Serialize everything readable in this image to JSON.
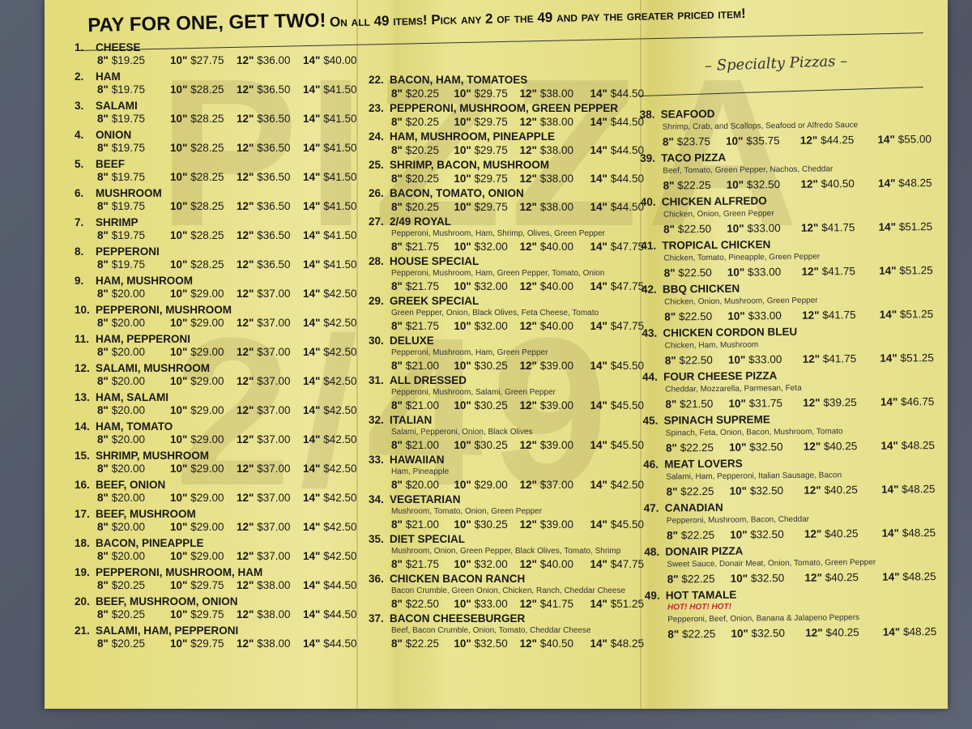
{
  "header": {
    "headline_big": "PAY FOR ONE, GET TWO!",
    "headline_small": "On all 49 items! Pick any 2 of the 49 and pay the greater priced item!",
    "specialty_title": "– Specialty Pizzas –"
  },
  "watermark": "PIZZA 2/49",
  "sizes": [
    "8\"",
    "10\"",
    "12\"",
    "14\""
  ],
  "colors": {
    "paper": "#e8e28a",
    "hot_text": "#c0282d",
    "background": "#5b6172"
  },
  "columns": {
    "left": [
      {
        "num": "1.",
        "name": "CHEESE",
        "prices": [
          "$19.25",
          "$27.75",
          "$36.00",
          "$40.00"
        ]
      },
      {
        "num": "2.",
        "name": "HAM",
        "prices": [
          "$19.75",
          "$28.25",
          "$36.50",
          "$41.50"
        ]
      },
      {
        "num": "3.",
        "name": "SALAMI",
        "prices": [
          "$19.75",
          "$28.25",
          "$36.50",
          "$41.50"
        ]
      },
      {
        "num": "4.",
        "name": "ONION",
        "prices": [
          "$19.75",
          "$28.25",
          "$36.50",
          "$41.50"
        ]
      },
      {
        "num": "5.",
        "name": "BEEF",
        "prices": [
          "$19.75",
          "$28.25",
          "$36.50",
          "$41.50"
        ]
      },
      {
        "num": "6.",
        "name": "MUSHROOM",
        "prices": [
          "$19.75",
          "$28.25",
          "$36.50",
          "$41.50"
        ]
      },
      {
        "num": "7.",
        "name": "SHRIMP",
        "prices": [
          "$19.75",
          "$28.25",
          "$36.50",
          "$41.50"
        ]
      },
      {
        "num": "8.",
        "name": "PEPPERONI",
        "prices": [
          "$19.75",
          "$28.25",
          "$36.50",
          "$41.50"
        ]
      },
      {
        "num": "9.",
        "name": "HAM, MUSHROOM",
        "prices": [
          "$20.00",
          "$29.00",
          "$37.00",
          "$42.50"
        ]
      },
      {
        "num": "10.",
        "name": "PEPPERONI, MUSHROOM",
        "prices": [
          "$20.00",
          "$29.00",
          "$37.00",
          "$42.50"
        ]
      },
      {
        "num": "11.",
        "name": "HAM, PEPPERONI",
        "prices": [
          "$20.00",
          "$29.00",
          "$37.00",
          "$42.50"
        ]
      },
      {
        "num": "12.",
        "name": "SALAMI, MUSHROOM",
        "prices": [
          "$20.00",
          "$29.00",
          "$37.00",
          "$42.50"
        ]
      },
      {
        "num": "13.",
        "name": "HAM, SALAMI",
        "prices": [
          "$20.00",
          "$29.00",
          "$37.00",
          "$42.50"
        ]
      },
      {
        "num": "14.",
        "name": "HAM, TOMATO",
        "prices": [
          "$20.00",
          "$29.00",
          "$37.00",
          "$42.50"
        ]
      },
      {
        "num": "15.",
        "name": "SHRIMP, MUSHROOM",
        "prices": [
          "$20.00",
          "$29.00",
          "$37.00",
          "$42.50"
        ]
      },
      {
        "num": "16.",
        "name": "BEEF, ONION",
        "prices": [
          "$20.00",
          "$29.00",
          "$37.00",
          "$42.50"
        ]
      },
      {
        "num": "17.",
        "name": "BEEF, MUSHROOM",
        "prices": [
          "$20.00",
          "$29.00",
          "$37.00",
          "$42.50"
        ]
      },
      {
        "num": "18.",
        "name": "BACON, PINEAPPLE",
        "prices": [
          "$20.00",
          "$29.00",
          "$37.00",
          "$42.50"
        ]
      },
      {
        "num": "19.",
        "name": "PEPPERONI, MUSHROOM, HAM",
        "prices": [
          "$20.25",
          "$29.75",
          "$38.00",
          "$44.50"
        ]
      },
      {
        "num": "20.",
        "name": "BEEF, MUSHROOM, ONION",
        "prices": [
          "$20.25",
          "$29.75",
          "$38.00",
          "$44.50"
        ]
      },
      {
        "num": "21.",
        "name": "SALAMI, HAM, PEPPERONI",
        "prices": [
          "$20.25",
          "$29.75",
          "$38.00",
          "$44.50"
        ]
      }
    ],
    "mid": [
      {
        "num": "22.",
        "name": "BACON, HAM, TOMATOES",
        "prices": [
          "$20.25",
          "$29.75",
          "$38.00",
          "$44.50"
        ]
      },
      {
        "num": "23.",
        "name": "PEPPERONI, MUSHROOM, GREEN PEPPER",
        "prices": [
          "$20.25",
          "$29.75",
          "$38.00",
          "$44.50"
        ]
      },
      {
        "num": "24.",
        "name": "HAM, MUSHROOM, PINEAPPLE",
        "prices": [
          "$20.25",
          "$29.75",
          "$38.00",
          "$44.50"
        ]
      },
      {
        "num": "25.",
        "name": "SHRIMP, BACON, MUSHROOM",
        "prices": [
          "$20.25",
          "$29.75",
          "$38.00",
          "$44.50"
        ]
      },
      {
        "num": "26.",
        "name": "BACON, TOMATO, ONION",
        "prices": [
          "$20.25",
          "$29.75",
          "$38.00",
          "$44.50"
        ]
      },
      {
        "num": "27.",
        "name": "2/49 ROYAL",
        "desc": "Pepperoni, Mushroom, Ham, Shrimp, Olives, Green Pepper",
        "prices": [
          "$21.75",
          "$32.00",
          "$40.00",
          "$47.75"
        ]
      },
      {
        "num": "28.",
        "name": "HOUSE SPECIAL",
        "desc": "Pepperoni, Mushroom, Ham, Green Pepper, Tomato, Onion",
        "prices": [
          "$21.75",
          "$32.00",
          "$40.00",
          "$47.75"
        ]
      },
      {
        "num": "29.",
        "name": "GREEK SPECIAL",
        "desc": "Green Pepper, Onion, Black Olives, Feta Cheese, Tomato",
        "prices": [
          "$21.75",
          "$32.00",
          "$40.00",
          "$47.75"
        ]
      },
      {
        "num": "30.",
        "name": "DELUXE",
        "desc": "Pepperoni, Mushroom, Ham, Green Pepper",
        "prices": [
          "$21.00",
          "$30.25",
          "$39.00",
          "$45.50"
        ]
      },
      {
        "num": "31.",
        "name": "ALL DRESSED",
        "desc": "Pepperoni, Mushroom, Salami, Green Pepper",
        "prices": [
          "$21.00",
          "$30.25",
          "$39.00",
          "$45.50"
        ]
      },
      {
        "num": "32.",
        "name": "ITALIAN",
        "desc": "Salami, Pepperoni, Onion, Black Olives",
        "prices": [
          "$21.00",
          "$30.25",
          "$39.00",
          "$45.50"
        ]
      },
      {
        "num": "33.",
        "name": "HAWAIIAN",
        "desc": "Ham, Pineapple",
        "prices": [
          "$20.00",
          "$29.00",
          "$37.00",
          "$42.50"
        ]
      },
      {
        "num": "34.",
        "name": "VEGETARIAN",
        "desc": "Mushroom, Tomato, Onion, Green Pepper",
        "prices": [
          "$21.00",
          "$30.25",
          "$39.00",
          "$45.50"
        ]
      },
      {
        "num": "35.",
        "name": "DIET SPECIAL",
        "desc": "Mushroom, Onion, Green Pepper, Black Olives, Tomato, Shrimp",
        "prices": [
          "$21.75",
          "$32.00",
          "$40.00",
          "$47.75"
        ]
      },
      {
        "num": "36.",
        "name": "CHICKEN BACON RANCH",
        "desc": "Bacon Crumble, Green Onion, Chicken, Ranch, Cheddar Cheese",
        "prices": [
          "$22.50",
          "$33.00",
          "$41.75",
          "$51.25"
        ]
      },
      {
        "num": "37.",
        "name": "BACON CHEESEBURGER",
        "desc": "Beef, Bacon Crumble, Onion, Tomato, Cheddar Cheese",
        "prices": [
          "$22.25",
          "$32.50",
          "$40.50",
          "$48.25"
        ]
      }
    ],
    "right": [
      {
        "num": "38.",
        "name": "SEAFOOD",
        "desc": "Shrimp, Crab, and Scallops, Seafood or Alfredo Sauce",
        "prices": [
          "$23.75",
          "$35.75",
          "$44.25",
          "$55.00"
        ]
      },
      {
        "num": "39.",
        "name": "TACO PIZZA",
        "desc": "Beef, Tomato, Green Pepper, Nachos, Cheddar",
        "prices": [
          "$22.25",
          "$32.50",
          "$40.50",
          "$48.25"
        ]
      },
      {
        "num": "40.",
        "name": "CHICKEN ALFREDO",
        "desc": "Chicken, Onion, Green Pepper",
        "prices": [
          "$22.50",
          "$33.00",
          "$41.75",
          "$51.25"
        ]
      },
      {
        "num": "41.",
        "name": "TROPICAL CHICKEN",
        "desc": "Chicken, Tomato, Pineapple, Green Pepper",
        "prices": [
          "$22.50",
          "$33.00",
          "$41.75",
          "$51.25"
        ]
      },
      {
        "num": "42.",
        "name": "BBQ CHICKEN",
        "desc": "Chicken, Onion, Mushroom, Green Pepper",
        "prices": [
          "$22.50",
          "$33.00",
          "$41.75",
          "$51.25"
        ]
      },
      {
        "num": "43.",
        "name": "CHICKEN CORDON BLEU",
        "desc": "Chicken, Ham, Mushroom",
        "prices": [
          "$22.50",
          "$33.00",
          "$41.75",
          "$51.25"
        ]
      },
      {
        "num": "44.",
        "name": "FOUR CHEESE PIZZA",
        "desc": "Cheddar, Mozzarella, Parmesan, Feta",
        "prices": [
          "$21.50",
          "$31.75",
          "$39.25",
          "$46.75"
        ]
      },
      {
        "num": "45.",
        "name": "SPINACH SUPREME",
        "desc": "Spinach, Feta, Onion, Bacon, Mushroom, Tomato",
        "prices": [
          "$22.25",
          "$32.50",
          "$40.25",
          "$48.25"
        ]
      },
      {
        "num": "46.",
        "name": "MEAT LOVERS",
        "desc": "Salami, Ham, Pepperoni, Italian Sausage, Bacon",
        "prices": [
          "$22.25",
          "$32.50",
          "$40.25",
          "$48.25"
        ]
      },
      {
        "num": "47.",
        "name": "CANADIAN",
        "desc": "Pepperoni, Mushroom, Bacon, Cheddar",
        "prices": [
          "$22.25",
          "$32.50",
          "$40.25",
          "$48.25"
        ]
      },
      {
        "num": "48.",
        "name": "DONAIR PIZZA",
        "desc": "Sweet Sauce, Donair Meat, Onion, Tomato, Green Pepper",
        "prices": [
          "$22.25",
          "$32.50",
          "$40.25",
          "$48.25"
        ]
      },
      {
        "num": "49.",
        "name": "HOT TAMALE",
        "hot": "HOT! HOT! HOT!",
        "desc": "Pepperoni, Beef, Onion, Banana & Jalapeno Peppers",
        "prices": [
          "$22.25",
          "$32.50",
          "$40.25",
          "$48.25"
        ]
      }
    ]
  }
}
